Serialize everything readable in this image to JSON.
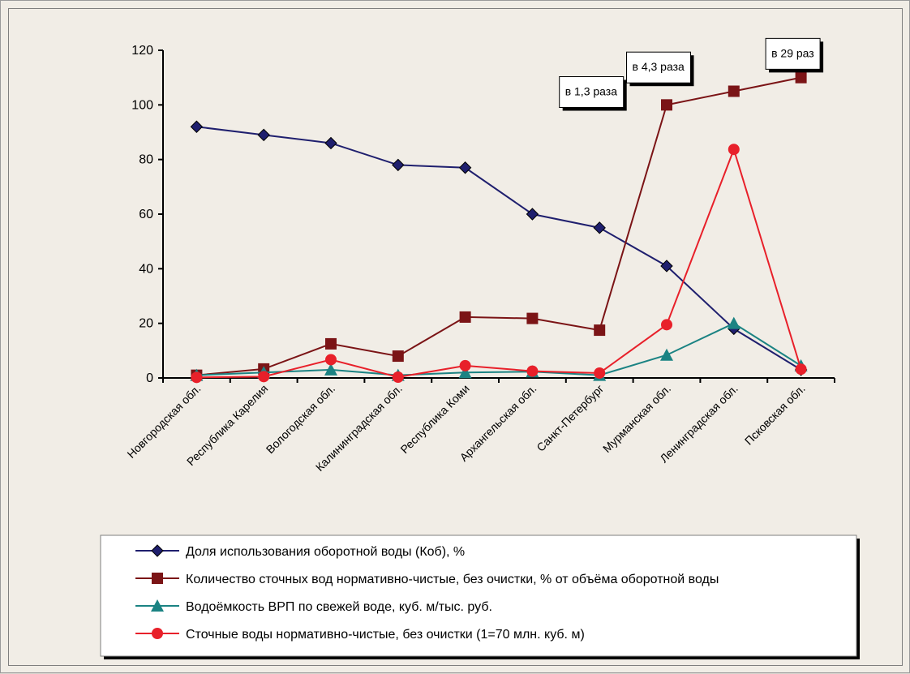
{
  "chart_data": {
    "type": "line",
    "title": "",
    "xlabel": "",
    "ylabel": "",
    "ylim": [
      0,
      120
    ],
    "yticks": [
      0,
      20,
      40,
      60,
      80,
      100,
      120
    ],
    "grid": false,
    "legend_position": "bottom",
    "categories": [
      "Новгородская обл.",
      "Республика Карелия",
      "Вологодская обл.",
      "Калининградская обл.",
      "Республика Коми",
      "Архангельская обл.",
      "Санкт-Петербург",
      "Мурманская обл.",
      "Ленинградская обл.",
      "Псковская обл."
    ],
    "series": [
      {
        "name": "Доля использования оборотной воды (Коб), %",
        "color": "#1f1f6e",
        "marker": "diamond",
        "values": [
          92,
          89,
          86,
          78,
          77,
          60,
          55,
          41,
          18,
          3
        ]
      },
      {
        "name": "Количество сточных вод нормативно-чистые, без очистки, % от объёма оборотной воды",
        "color": "#7b1416",
        "marker": "square",
        "values": [
          1,
          3.3,
          12.5,
          8,
          22.3,
          21.8,
          17.5,
          100,
          105,
          110
        ]
      },
      {
        "name": "Водоёмкость ВРП по свежей воде, куб. м/тыс. руб.",
        "color": "#1b8383",
        "marker": "triangle",
        "values": [
          1,
          2,
          3,
          1,
          2,
          2.3,
          1,
          8.4,
          20,
          4.5
        ]
      },
      {
        "name": "Сточные воды нормативно-чистые, без очистки (1=70 млн. куб. м)",
        "color": "#e8202a",
        "marker": "circle",
        "values": [
          0.2,
          0.5,
          6.7,
          0.3,
          4.5,
          2.5,
          1.8,
          19.5,
          83.7,
          3.2
        ]
      }
    ],
    "annotations": [
      {
        "text": "в 1,3 раза",
        "category": "Санкт-Петербург",
        "y": 105
      },
      {
        "text": "в 4,3 раза",
        "category": "Мурманская обл.",
        "y": 114
      },
      {
        "text": "в 29 раз",
        "category": "Псковская обл.",
        "y": 119
      }
    ]
  }
}
